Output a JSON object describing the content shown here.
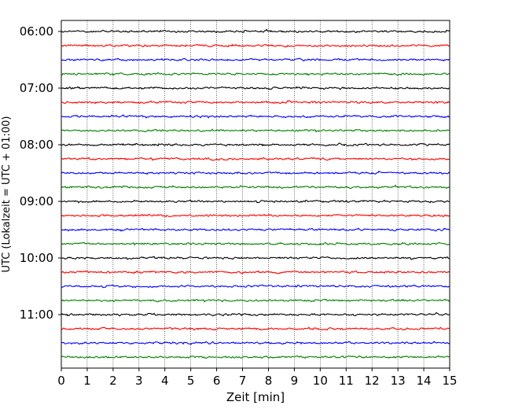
{
  "chart_data": {
    "type": "line",
    "title": "",
    "xlabel": "Zeit  [min]",
    "ylabel": "UTC (Lokalzeit = UTC + 01:00)",
    "xlim": [
      0,
      15
    ],
    "x_ticks": [
      0,
      1,
      2,
      3,
      4,
      5,
      6,
      7,
      8,
      9,
      10,
      11,
      12,
      13,
      14,
      15
    ],
    "y_tick_labels": [
      "06:00",
      "07:00",
      "08:00",
      "09:00",
      "10:00",
      "11:00"
    ],
    "y_tick_times": [
      "06:00",
      "07:00",
      "08:00",
      "09:00",
      "10:00",
      "11:00"
    ],
    "trace_interval_minutes": 15,
    "trace_start_times": [
      "06:00",
      "06:15",
      "06:30",
      "06:45",
      "07:00",
      "07:15",
      "07:30",
      "07:45",
      "08:00",
      "08:15",
      "08:30",
      "08:45",
      "09:00",
      "09:15",
      "09:30",
      "09:45",
      "10:00",
      "10:15",
      "10:30",
      "10:45",
      "11:00",
      "11:15",
      "11:30",
      "11:45"
    ],
    "trace_color_cycle": [
      "#000000",
      "#ff0000",
      "#0000ff",
      "#008000"
    ],
    "grid": "vertical dotted at each minute",
    "legend": "none"
  }
}
